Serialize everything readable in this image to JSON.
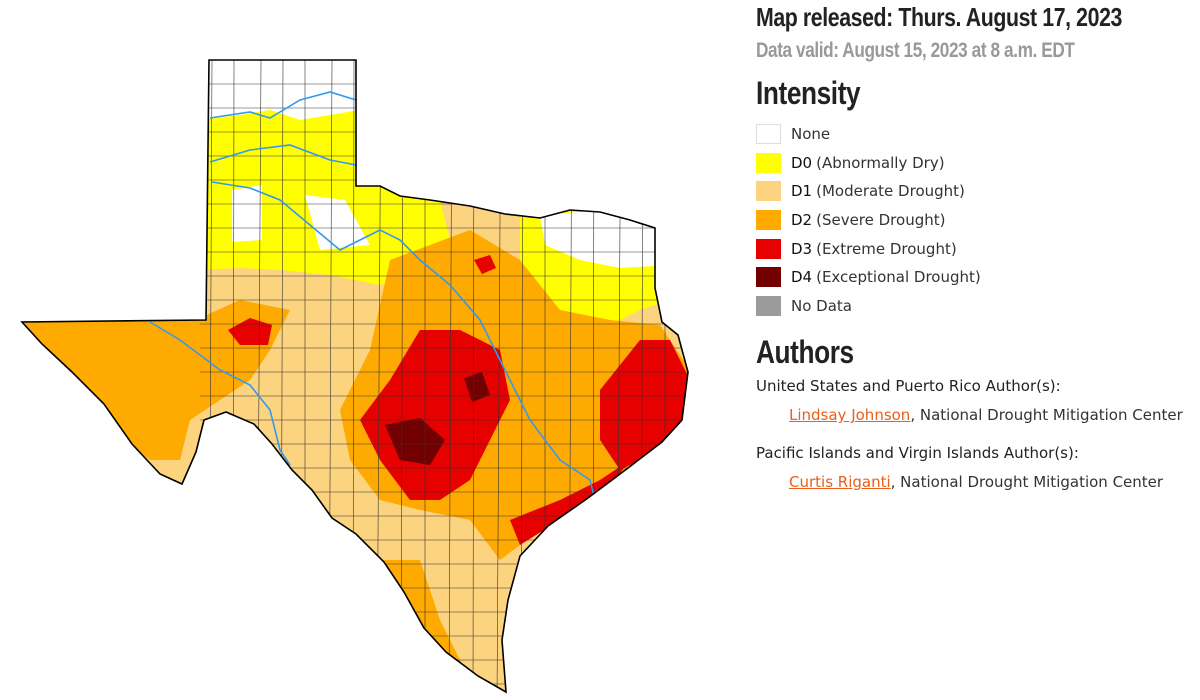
{
  "header": {
    "released": "Map released: Thurs. August 17, 2023",
    "valid": "Data valid: August 15, 2023 at 8 a.m. EDT"
  },
  "legend": {
    "title": "Intensity",
    "items": [
      {
        "code": "",
        "label": "None",
        "color": "#ffffff"
      },
      {
        "code": "D0",
        "label": "(Abnormally Dry)",
        "color": "#ffff00"
      },
      {
        "code": "D1",
        "label": "(Moderate Drought)",
        "color": "#fcd37f"
      },
      {
        "code": "D2",
        "label": "(Severe Drought)",
        "color": "#ffaa00"
      },
      {
        "code": "D3",
        "label": "(Extreme Drought)",
        "color": "#e60000"
      },
      {
        "code": "D4",
        "label": "(Exceptional Drought)",
        "color": "#730000"
      },
      {
        "code": "",
        "label": "No Data",
        "color": "#9b9b9b"
      }
    ]
  },
  "authors": {
    "title": "Authors",
    "groups": [
      {
        "heading": "United States and Puerto Rico Author(s):",
        "name": "Lindsay Johnson",
        "org": ", National Drought Mitigation Center"
      },
      {
        "heading": "Pacific Islands and Virgin Islands Author(s):",
        "name": "Curtis Riganti",
        "org": ", National Drought Mitigation Center"
      }
    ]
  },
  "colors": {
    "link": "#e8601c",
    "river": "#3399ee"
  }
}
